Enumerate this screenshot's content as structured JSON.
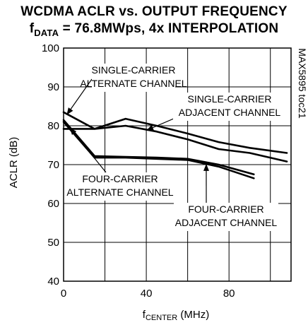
{
  "title_line1": "WCDMA ACLR vs. OUTPUT FREQUENCY",
  "title_line2_f": "f",
  "title_line2_sub": "DATA",
  "title_line2_rest": " = 76.8MWps, 4x INTERPOLATION",
  "code": "MAX5895 toc21",
  "chart_data": {
    "type": "line",
    "title": "WCDMA ACLR vs. OUTPUT FREQUENCY",
    "subtitle": "fDATA = 76.8MWps, 4x INTERPOLATION",
    "xlabel": "fCENTER (MHz)",
    "xlabel_f": "f",
    "xlabel_sub": "CENTER",
    "xlabel_unit": " (MHz)",
    "ylabel": "ACLR (dB)",
    "xlim": [
      0,
      110
    ],
    "ylim": [
      40,
      100
    ],
    "xticks": [
      0,
      40,
      80
    ],
    "yticks": [
      40,
      50,
      60,
      70,
      80,
      90,
      100
    ],
    "grid": true,
    "series": [
      {
        "name": "SINGLE-CARRIER ALTERNATE CHANNEL",
        "x": [
          0,
          15,
          30,
          45,
          60,
          75,
          90,
          108
        ],
        "y": [
          83.5,
          79.2,
          81.8,
          80.0,
          78.0,
          75.8,
          74.3,
          73.0
        ]
      },
      {
        "name": "SINGLE-CARRIER ADJACENT CHANNEL",
        "x": [
          0,
          15,
          30,
          45,
          60,
          75,
          90,
          108
        ],
        "y": [
          79.2,
          79.2,
          80.0,
          78.5,
          76.5,
          74.0,
          73.0,
          70.8
        ]
      },
      {
        "name": "FOUR-CARRIER ALTERNATE CHANNEL",
        "x": [
          0,
          15,
          30,
          45,
          60,
          75,
          92
        ],
        "y": [
          81.5,
          72.2,
          72.0,
          71.8,
          71.5,
          70.0,
          67.5
        ]
      },
      {
        "name": "FOUR-CARRIER ADJACENT CHANNEL",
        "x": [
          0,
          15,
          30,
          45,
          60,
          75,
          92
        ],
        "y": [
          81.0,
          71.8,
          71.8,
          71.5,
          71.2,
          69.5,
          66.5
        ]
      }
    ],
    "annotations": [
      {
        "line1": "SINGLE-CARRIER",
        "line2": "ALTERNATE CHANNEL"
      },
      {
        "line1": "SINGLE-CARRIER",
        "line2": "ADJACENT CHANNEL"
      },
      {
        "line1": "FOUR-CARRIER",
        "line2": "ALTERNATE CHANNEL"
      },
      {
        "line1": "FOUR-CARRIER",
        "line2": "ADJACENT CHANNEL"
      }
    ]
  }
}
